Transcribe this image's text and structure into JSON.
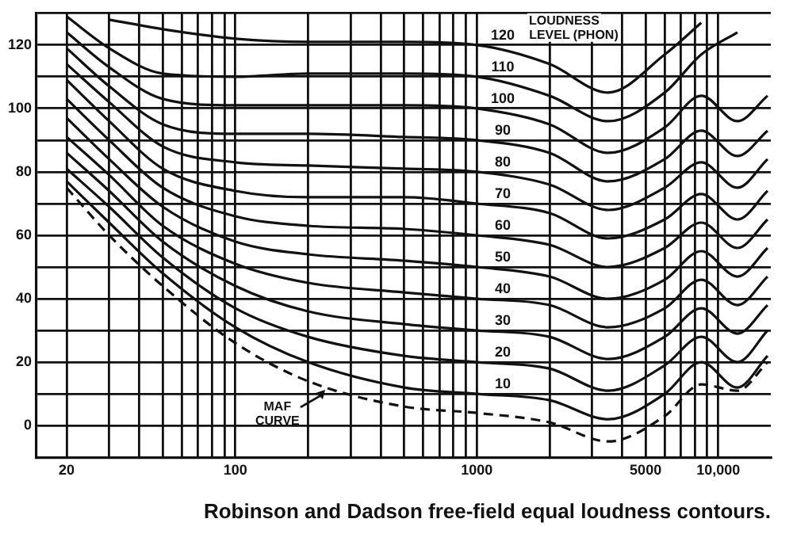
{
  "chart_data": {
    "type": "line",
    "title": "Robinson and Dadson free-field equal loudness contours.",
    "x": [
      20,
      30,
      50,
      100,
      200,
      500,
      1000,
      2000,
      3500,
      6000,
      8500,
      12000,
      16000
    ],
    "series": [
      {
        "name": "120",
        "color": "#111111",
        "values": [
          null,
          128,
          125,
          122,
          121,
          121,
          120,
          114,
          105,
          117,
          127,
          null,
          null
        ]
      },
      {
        "name": "110",
        "color": "#111111",
        "values": [
          129,
          119,
          111,
          110,
          111,
          111,
          110,
          104,
          96,
          105,
          117,
          124,
          null
        ]
      },
      {
        "name": "100",
        "color": "#111111",
        "values": [
          124,
          113,
          103,
          101,
          101,
          101,
          100,
          95,
          86,
          94,
          104,
          96,
          104
        ]
      },
      {
        "name": "90",
        "color": "#111111",
        "values": [
          119,
          107,
          95,
          92,
          92,
          91,
          90,
          86,
          77,
          84,
          93,
          85,
          93
        ]
      },
      {
        "name": "80",
        "color": "#111111",
        "values": [
          114,
          102,
          88,
          83,
          82,
          81,
          80,
          76,
          68,
          75,
          83,
          75,
          84
        ]
      },
      {
        "name": "70",
        "color": "#111111",
        "values": [
          109,
          96,
          81,
          74,
          72,
          72,
          70,
          67,
          59,
          65,
          73,
          65,
          74
        ]
      },
      {
        "name": "60",
        "color": "#111111",
        "values": [
          103,
          90,
          75,
          66,
          63,
          62,
          60,
          57,
          50,
          56,
          64,
          56,
          65
        ]
      },
      {
        "name": "50",
        "color": "#111111",
        "values": [
          97,
          84,
          69,
          58,
          54,
          52,
          50,
          47,
          40,
          46,
          55,
          47,
          56
        ]
      },
      {
        "name": "40",
        "color": "#111111",
        "values": [
          91,
          79,
          63,
          51,
          45,
          42,
          40,
          38,
          31,
          37,
          46,
          38,
          47
        ]
      },
      {
        "name": "30",
        "color": "#111111",
        "values": [
          86,
          74,
          58,
          44,
          36,
          32,
          30,
          28,
          21,
          28,
          37,
          29,
          38
        ]
      },
      {
        "name": "20",
        "color": "#111111",
        "values": [
          81,
          69,
          53,
          37,
          28,
          22,
          20,
          18,
          11,
          19,
          28,
          20,
          30
        ]
      },
      {
        "name": "10",
        "color": "#111111",
        "values": [
          77,
          64,
          48,
          31,
          20,
          12,
          10,
          8,
          2,
          10,
          20,
          12,
          22
        ]
      },
      {
        "color": "#111111",
        "line_style": "dashed",
        "values": [
          75,
          60,
          44,
          26,
          14,
          6,
          4,
          1,
          -5,
          3,
          13,
          11,
          20
        ]
      }
    ],
    "annotations": [
      "LOUDNESS LEVEL (PHON)",
      {
        "text": "MAF CURVE",
        "x": 235,
        "y": 11.5
      }
    ],
    "log": "x",
    "xlim": [
      15,
      16500
    ],
    "xticks": [
      20,
      {
        "value": 30,
        "label": null
      },
      {
        "value": 40,
        "label": null
      },
      {
        "value": 50,
        "label": null
      },
      {
        "value": 60,
        "label": null
      },
      {
        "value": 70,
        "label": null
      },
      {
        "value": 80,
        "label": null
      },
      {
        "value": 90,
        "label": null
      },
      100,
      {
        "value": 200,
        "label": null
      },
      {
        "value": 300,
        "label": null
      },
      {
        "value": 400,
        "label": null
      },
      {
        "value": 500,
        "label": null
      },
      {
        "value": 600,
        "label": null
      },
      {
        "value": 700,
        "label": null
      },
      {
        "value": 800,
        "label": null
      },
      {
        "value": 900,
        "label": null
      },
      1000,
      {
        "value": 2000,
        "label": null
      },
      {
        "value": 3000,
        "label": null
      },
      {
        "value": 4000,
        "label": null
      },
      5000,
      {
        "value": 6000,
        "label": null
      },
      {
        "value": 7000,
        "label": null
      },
      {
        "value": 8000,
        "label": null
      },
      {
        "value": 9000,
        "label": null
      },
      {
        "value": 10000,
        "label": "10,000"
      }
    ],
    "ylim": [
      -10,
      130
    ],
    "yticks": [
      {
        "value": -10,
        "label": null
      },
      0,
      {
        "value": 10,
        "label": null
      },
      20,
      {
        "value": 30,
        "label": null
      },
      40,
      {
        "value": 50,
        "label": null
      },
      60,
      {
        "value": 70,
        "label": null
      },
      80,
      {
        "value": 90,
        "label": null
      },
      100,
      {
        "value": 110,
        "label": null
      },
      120,
      {
        "value": 130,
        "label": null
      }
    ],
    "grid": true,
    "legend": false,
    "marker": "none",
    "line_style": "solid"
  }
}
